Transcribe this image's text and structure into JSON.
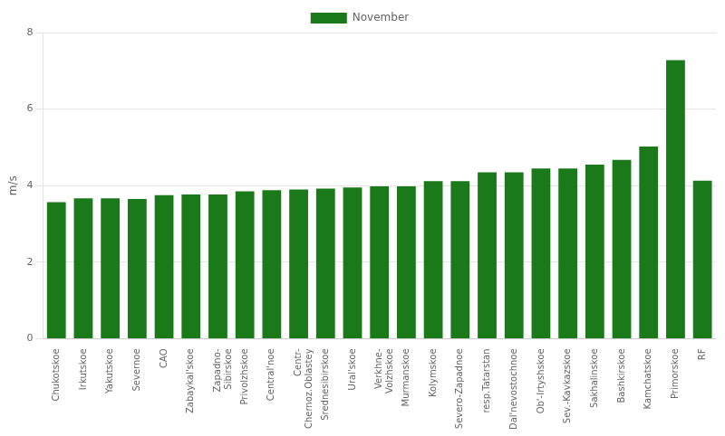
{
  "chart_data": {
    "type": "bar",
    "categories": [
      "Chukotskoe",
      "Irkutskoe",
      "Yakutskoe",
      "Severnoe",
      "CAO",
      "Zabaykal'skoe",
      "Zapadno-\nSibirskoe",
      "Privolzhskoe",
      "Central'noe",
      "Centr-\nChernoz.Oblastey",
      "Srednesibirskoe",
      "Ural'skoe",
      "Verkhnе-\nVolzhskoe",
      "Murmanskoe",
      "Kolymskoe",
      "Severo-Zapadnoe",
      "resp.Tatarstan",
      "Dal'nevostochnoe",
      "Ob'-Irtyshskoe",
      "Sev.-Kavkazskoe",
      "Sakhalinskoe",
      "Bashkirskoe",
      "Kamchatskoe",
      "Primorskoe",
      "RF"
    ],
    "series": [
      {
        "name": "November",
        "color": "#1a7a1a",
        "values": [
          3.57,
          3.67,
          3.67,
          3.65,
          3.75,
          3.77,
          3.77,
          3.85,
          3.88,
          3.9,
          3.92,
          3.95,
          3.98,
          3.98,
          4.12,
          4.12,
          4.35,
          4.35,
          4.45,
          4.45,
          4.55,
          4.67,
          5.02,
          7.28,
          4.13
        ]
      }
    ],
    "ylabel": "m/s",
    "ylim": [
      0,
      8
    ],
    "yticks": [
      0,
      2,
      4,
      6,
      8
    ],
    "grid": true,
    "legend": "top"
  }
}
